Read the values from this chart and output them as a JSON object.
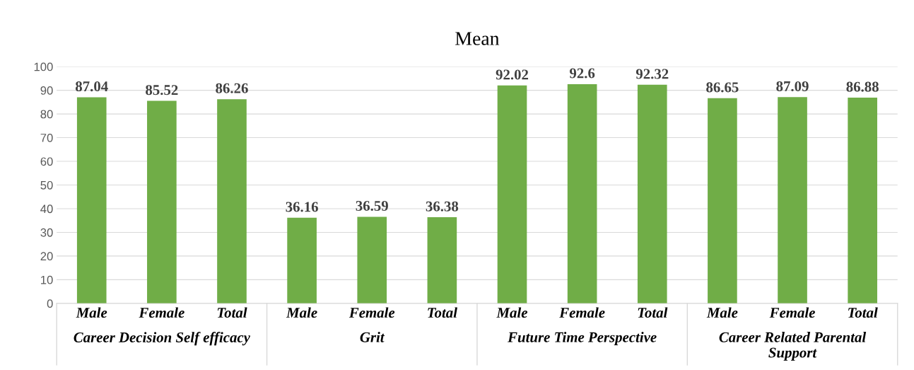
{
  "chart_data": {
    "type": "bar",
    "title": "Mean",
    "categories": [
      "Male",
      "Female",
      "Total",
      "Male",
      "Female",
      "Total",
      "Male",
      "Female",
      "Total",
      "Male",
      "Female",
      "Total"
    ],
    "values": [
      87.04,
      85.52,
      86.26,
      36.16,
      36.59,
      36.38,
      92.02,
      92.6,
      92.32,
      86.65,
      87.09,
      86.88
    ],
    "color": "#70ad47",
    "data_labels": true,
    "ylim": [
      0,
      100
    ],
    "yticks": [
      0,
      10,
      20,
      30,
      40,
      50,
      60,
      70,
      80,
      90,
      100
    ],
    "grid": "y",
    "legend": false,
    "annotations": [
      "Career Decision Self efficacy",
      "Grit",
      "Future Time Perspective",
      "Career Related Parental\nSupport"
    ]
  }
}
